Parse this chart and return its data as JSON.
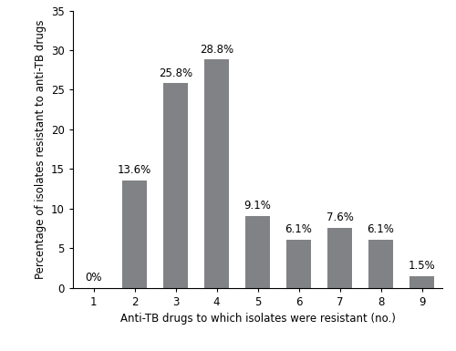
{
  "categories": [
    1,
    2,
    3,
    4,
    5,
    6,
    7,
    8,
    9
  ],
  "values": [
    0.0,
    13.6,
    25.8,
    28.8,
    9.1,
    6.1,
    7.6,
    6.1,
    1.5
  ],
  "labels": [
    "0%",
    "13.6%",
    "25.8%",
    "28.8%",
    "9.1%",
    "6.1%",
    "7.6%",
    "6.1%",
    "1.5%"
  ],
  "bar_color": "#808285",
  "xlabel": "Anti-TB drugs to which isolates were resistant (no.)",
  "ylabel": "Percentage of isolates resistant to anti-TB drugs",
  "ylim": [
    0,
    35
  ],
  "yticks": [
    0,
    5,
    10,
    15,
    20,
    25,
    30,
    35
  ],
  "xticks": [
    1,
    2,
    3,
    4,
    5,
    6,
    7,
    8,
    9
  ],
  "label_fontsize": 8.5,
  "tick_fontsize": 8.5,
  "annot_fontsize": 8.5,
  "bar_width": 0.6
}
